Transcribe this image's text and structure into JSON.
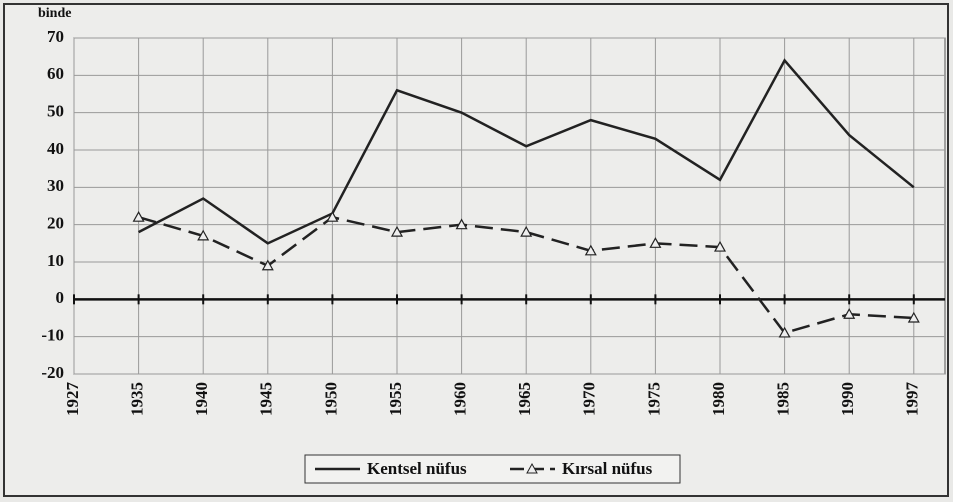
{
  "chart_data": {
    "type": "line",
    "y_label": "binde",
    "categories": [
      "1927",
      "1935",
      "1940",
      "1945",
      "1950",
      "1955",
      "1960",
      "1965",
      "1970",
      "1975",
      "1980",
      "1985",
      "1990",
      "1997"
    ],
    "series": [
      {
        "name": "Kentsel nüfus",
        "color": "#222222",
        "dash": false,
        "marker": "none",
        "values": [
          null,
          18,
          27,
          15,
          23,
          56,
          50,
          41,
          48,
          43,
          32,
          64,
          44,
          30
        ]
      },
      {
        "name": "Kırsal nüfus",
        "color": "#222222",
        "dash": true,
        "marker": "triangle",
        "values": [
          null,
          22,
          17,
          9,
          22,
          18,
          20,
          18,
          13,
          15,
          14,
          -9,
          -4,
          -5
        ]
      }
    ],
    "ylim": [
      -20,
      70
    ],
    "yticks": [
      -20,
      -10,
      0,
      10,
      20,
      30,
      40,
      50,
      60,
      70
    ],
    "grid": true,
    "legend": "bottom"
  }
}
